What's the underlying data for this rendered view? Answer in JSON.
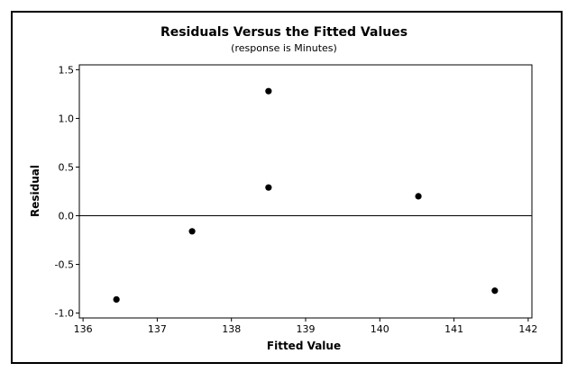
{
  "chart_data": {
    "type": "scatter",
    "title": "Residuals Versus the Fitted Values",
    "subtitle": "(response is Minutes)",
    "xlabel": "Fitted Value",
    "ylabel": "Residual",
    "xlim": [
      135.95,
      142.05
    ],
    "ylim": [
      -1.05,
      1.55
    ],
    "x_ticks": [
      136,
      137,
      138,
      139,
      140,
      141,
      142
    ],
    "x_tick_labels": [
      "136",
      "137",
      "138",
      "139",
      "140",
      "141",
      "142"
    ],
    "y_ticks": [
      -1.0,
      -0.5,
      0.0,
      0.5,
      1.0,
      1.5
    ],
    "y_tick_labels": [
      "-1.0",
      "-0.5",
      "0.0",
      "0.5",
      "1.0",
      "1.5"
    ],
    "reference_line_y": 0.0,
    "grid": false,
    "x": [
      136.45,
      137.47,
      138.5,
      138.5,
      140.52,
      141.55
    ],
    "y": [
      -0.86,
      -0.16,
      1.28,
      0.29,
      0.2,
      -0.77
    ],
    "marker_color": "#000000"
  }
}
